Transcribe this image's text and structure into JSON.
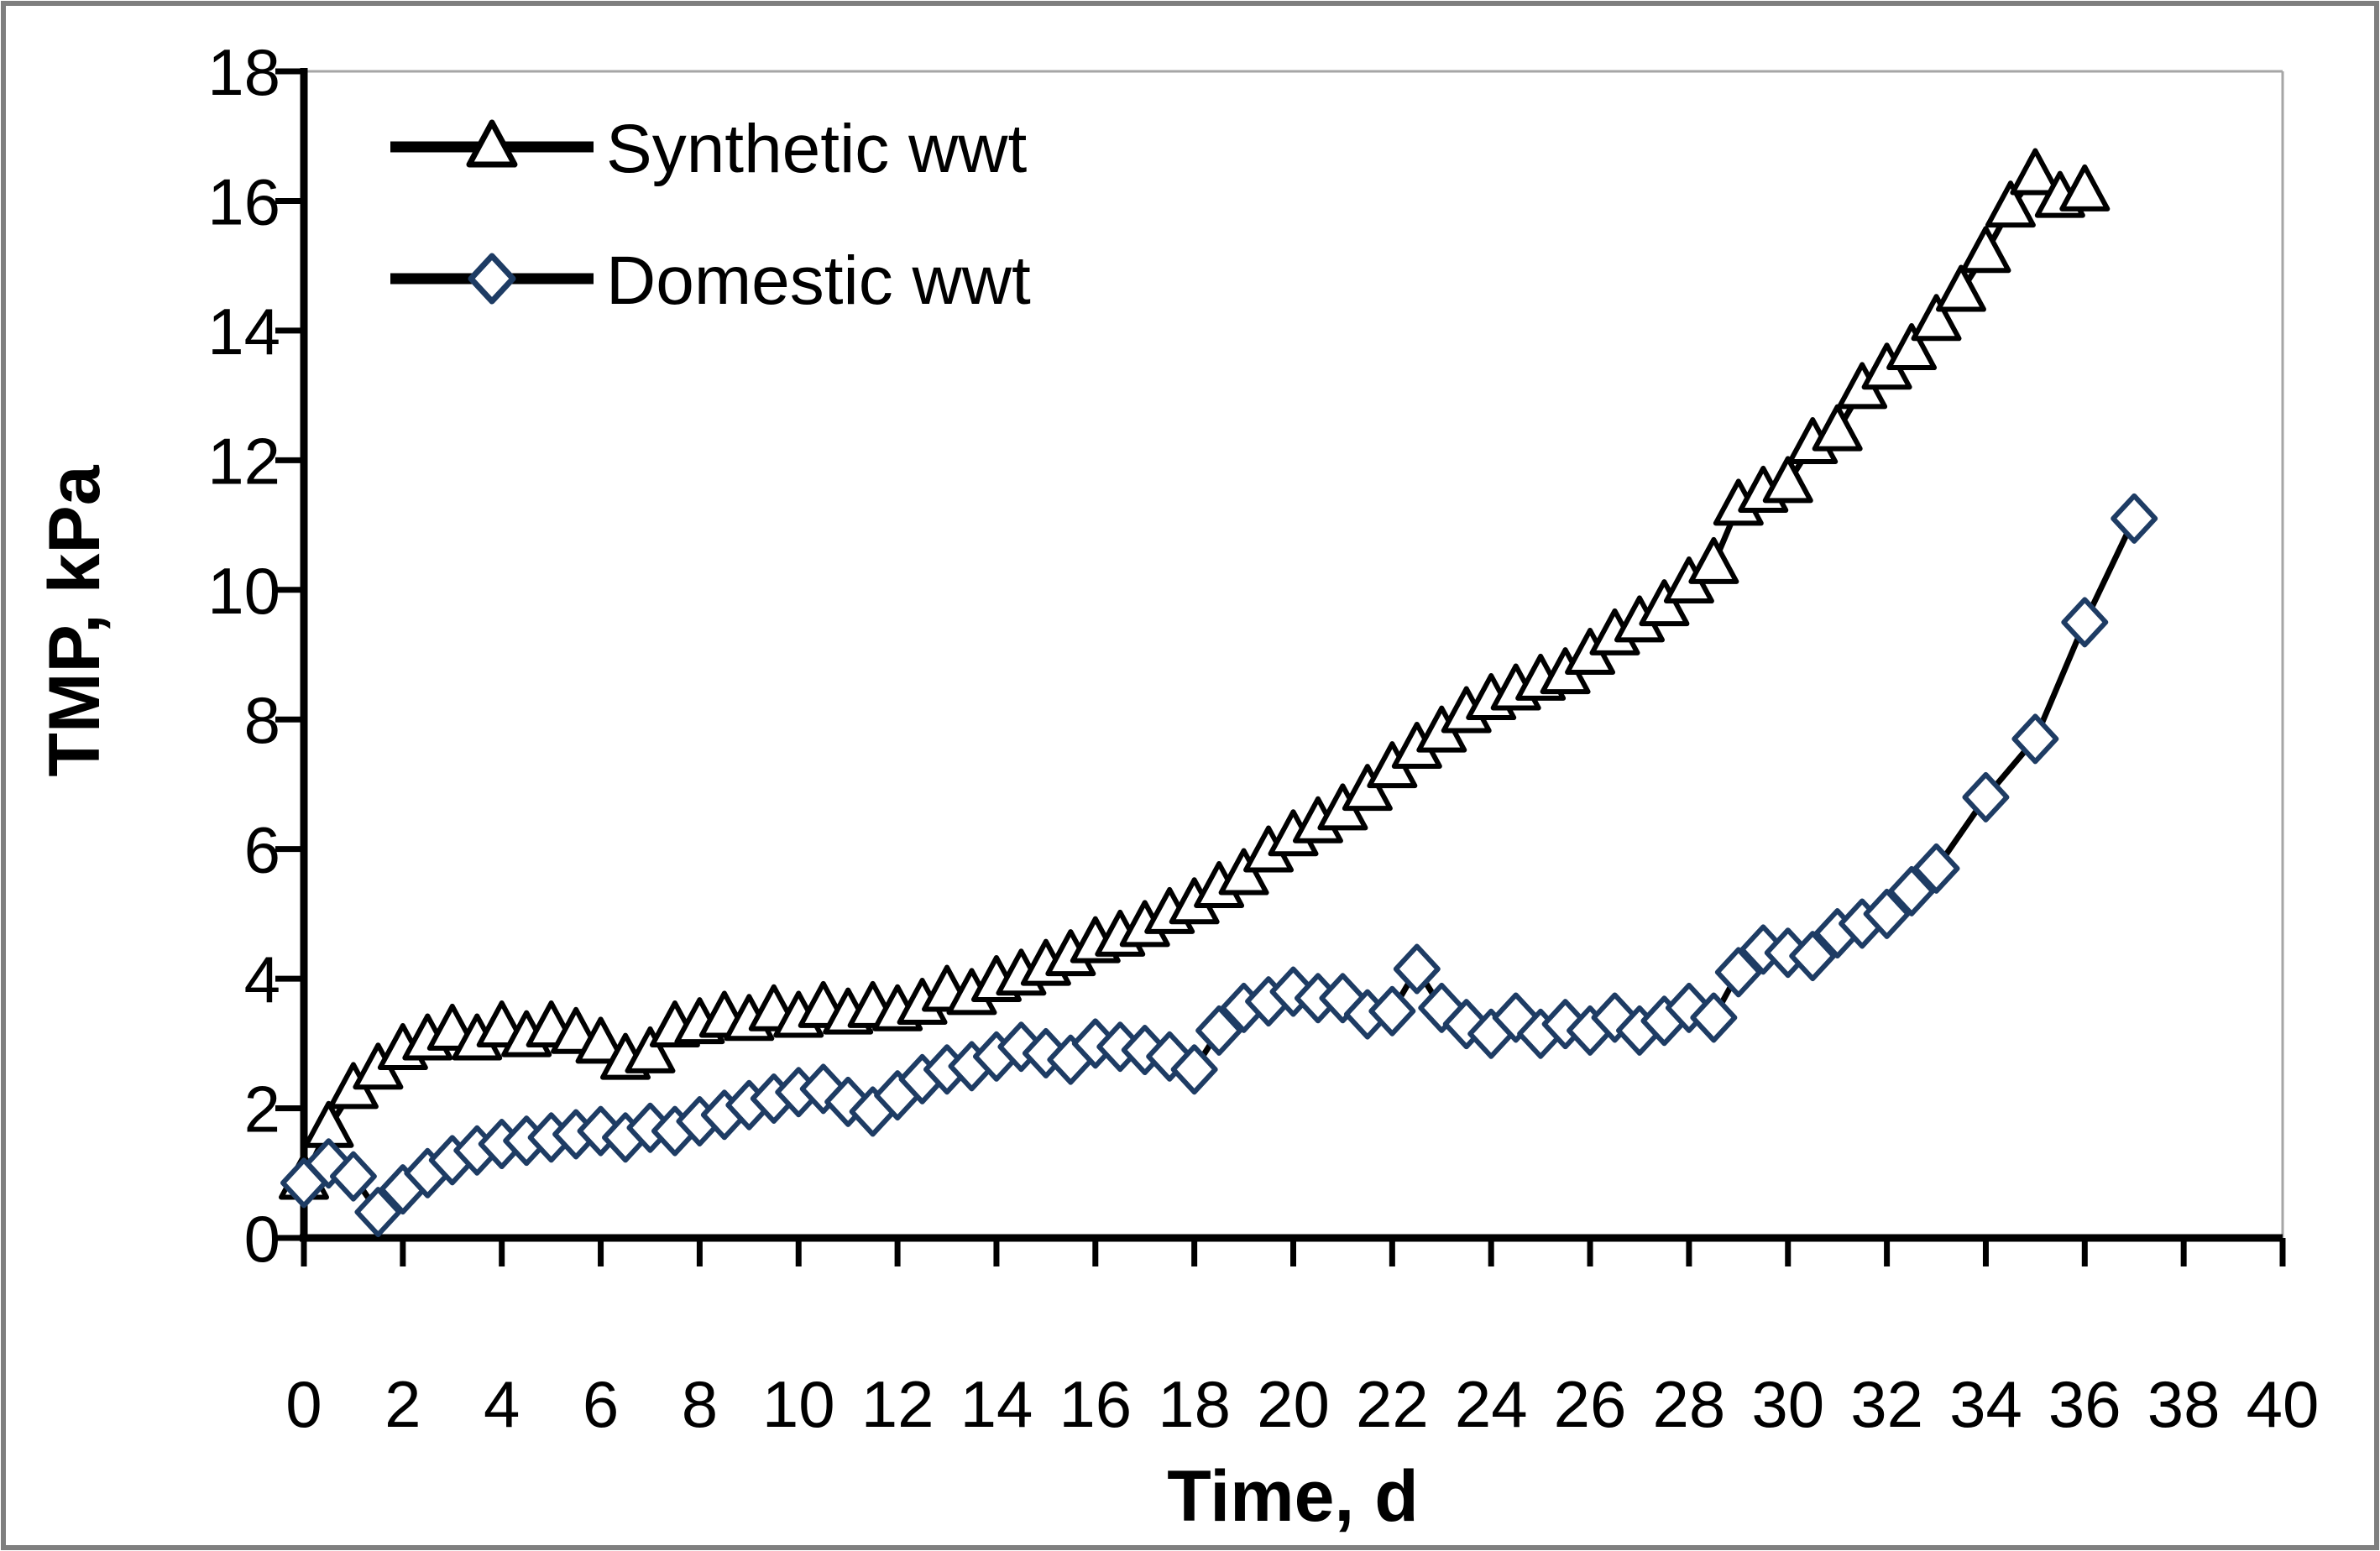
{
  "figure": {
    "background": "#ffffff",
    "outer_border_color": "#7f7f7f",
    "plot_border_color": "#a6a6a6",
    "axis_color": "#000000"
  },
  "chart_data": {
    "type": "line",
    "title": "",
    "xlabel": "Time, d",
    "ylabel": "TMP, kPa",
    "xlim": [
      0,
      40
    ],
    "ylim": [
      0,
      18
    ],
    "xticks": [
      0,
      2,
      4,
      6,
      8,
      10,
      12,
      14,
      16,
      18,
      20,
      22,
      24,
      26,
      28,
      30,
      32,
      34,
      36,
      38,
      40
    ],
    "yticks": [
      0,
      2,
      4,
      6,
      8,
      10,
      12,
      14,
      16,
      18
    ],
    "grid": false,
    "legend_position": "top-left-inside",
    "series": [
      {
        "name": "Synthetic wwt",
        "marker": "triangle",
        "line_color": "#000000",
        "marker_edge_color": "#000000",
        "marker_fill": "#ffffff",
        "x": [
          0,
          0.5,
          1,
          1.5,
          2,
          2.5,
          3,
          3.5,
          4,
          4.5,
          5,
          5.5,
          6,
          6.5,
          7,
          7.5,
          8,
          8.5,
          9,
          9.5,
          10,
          10.5,
          11,
          11.5,
          12,
          12.5,
          13,
          13.5,
          14,
          14.5,
          15,
          15.5,
          16,
          16.5,
          17,
          17.5,
          18,
          18.5,
          19,
          19.5,
          20,
          20.5,
          21,
          21.5,
          22,
          22.5,
          23,
          23.5,
          24,
          24.5,
          25,
          25.5,
          26,
          26.5,
          27,
          27.5,
          28,
          28.5,
          29,
          29.5,
          30,
          30.5,
          31,
          31.5,
          32,
          32.5,
          33,
          33.5,
          34,
          34.5,
          35,
          35.5,
          36
        ],
        "y": [
          0.9,
          1.7,
          2.3,
          2.6,
          2.9,
          3.05,
          3.2,
          3.05,
          3.25,
          3.1,
          3.25,
          3.15,
          3.0,
          2.75,
          2.85,
          3.25,
          3.3,
          3.4,
          3.35,
          3.5,
          3.4,
          3.55,
          3.45,
          3.55,
          3.5,
          3.6,
          3.8,
          3.75,
          3.95,
          4.05,
          4.2,
          4.35,
          4.55,
          4.65,
          4.8,
          5.0,
          5.15,
          5.4,
          5.6,
          5.95,
          6.2,
          6.4,
          6.6,
          6.9,
          7.25,
          7.55,
          7.8,
          8.1,
          8.3,
          8.45,
          8.6,
          8.7,
          9.0,
          9.3,
          9.5,
          9.75,
          10.1,
          10.4,
          11.3,
          11.5,
          11.65,
          12.25,
          12.45,
          13.1,
          13.4,
          13.7,
          14.15,
          14.6,
          15.2,
          15.9,
          16.4,
          16.05,
          16.15
        ]
      },
      {
        "name": "Domestic wwt",
        "marker": "diamond",
        "line_color": "#000000",
        "marker_edge_color": "#1e3c64",
        "marker_fill": "#ffffff",
        "x": [
          0,
          0.5,
          1,
          1.5,
          2,
          2.5,
          3,
          3.5,
          4,
          4.5,
          5,
          5.5,
          6,
          6.5,
          7,
          7.5,
          8,
          8.5,
          9,
          9.5,
          10,
          10.5,
          11,
          11.5,
          12,
          12.5,
          13,
          13.5,
          14,
          14.5,
          15,
          15.5,
          16,
          16.5,
          17,
          17.5,
          18,
          18.5,
          19,
          19.5,
          20,
          20.5,
          21,
          21.5,
          22,
          22.5,
          23,
          23.5,
          24,
          24.5,
          25,
          25.5,
          26,
          26.5,
          27,
          27.5,
          28,
          28.5,
          29,
          29.5,
          30,
          30.5,
          31,
          31.5,
          32,
          32.5,
          33,
          34,
          35,
          36,
          37
        ],
        "y": [
          0.85,
          1.15,
          0.95,
          0.4,
          0.75,
          1.0,
          1.2,
          1.35,
          1.45,
          1.5,
          1.55,
          1.6,
          1.65,
          1.55,
          1.7,
          1.65,
          1.8,
          1.9,
          2.05,
          2.15,
          2.25,
          2.3,
          2.1,
          1.95,
          2.2,
          2.45,
          2.6,
          2.65,
          2.8,
          2.95,
          2.85,
          2.75,
          3.0,
          2.95,
          2.9,
          2.8,
          2.6,
          3.2,
          3.55,
          3.65,
          3.8,
          3.7,
          3.7,
          3.45,
          3.5,
          4.15,
          3.55,
          3.3,
          3.15,
          3.4,
          3.15,
          3.3,
          3.2,
          3.4,
          3.2,
          3.35,
          3.55,
          3.4,
          4.1,
          4.45,
          4.4,
          4.35,
          4.7,
          4.85,
          5.0,
          5.35,
          5.7,
          6.8,
          7.7,
          9.5,
          11.1
        ]
      }
    ]
  }
}
